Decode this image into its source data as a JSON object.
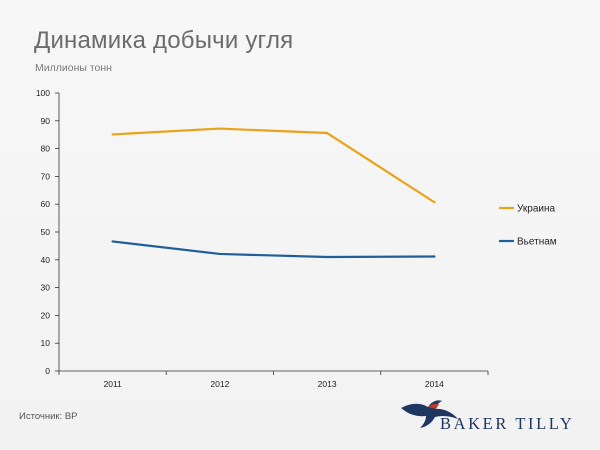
{
  "header": {
    "title": "Динамика добычи угля",
    "subtitle": "Миллионы тонн"
  },
  "footer": {
    "source": "Источник: BP",
    "logo_text": "BAKER TILLY"
  },
  "colors": {
    "ukraine": "#e8a317",
    "vietnam": "#1f5f99",
    "axis": "#333333",
    "text": "#222222",
    "brand": "#1f3660",
    "brand_accent": "#c0392b"
  },
  "chart_data": {
    "type": "line",
    "title": "Динамика добычи угля",
    "ylabel": "Миллионы тонн",
    "xlabel": "",
    "categories": [
      "2011",
      "2012",
      "2013",
      "2014"
    ],
    "ylim": [
      0,
      100
    ],
    "yticks": [
      0,
      10,
      20,
      30,
      40,
      50,
      60,
      70,
      80,
      90,
      100
    ],
    "grid": false,
    "legend_position": "right",
    "series": [
      {
        "name": "Украина",
        "values": [
          85.1,
          87.2,
          85.6,
          60.7
        ],
        "color": "#e8a317"
      },
      {
        "name": "Вьетнам",
        "values": [
          46.6,
          42.1,
          41.0,
          41.2
        ],
        "color": "#1f5f99"
      }
    ]
  }
}
